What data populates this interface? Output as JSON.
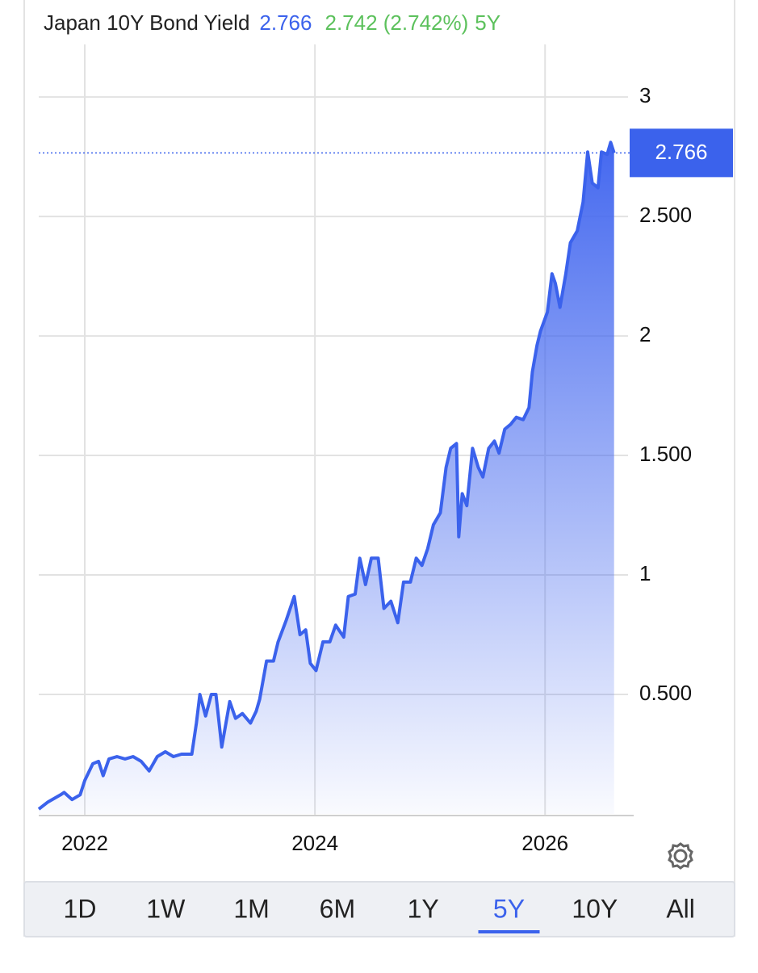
{
  "chart_data": {
    "type": "area",
    "title": "Japan 10Y Bond Yield",
    "last_value": 2.766,
    "change_label": "2.742 (2.742%)",
    "range_label": "5Y",
    "color": "#3b62ec",
    "grid": true,
    "x": [
      2021.6,
      2021.68,
      2021.79,
      2021.82,
      2021.89,
      2021.96,
      2022.0,
      2022.07,
      2022.12,
      2022.16,
      2022.21,
      2022.28,
      2022.35,
      2022.42,
      2022.49,
      2022.56,
      2022.63,
      2022.7,
      2022.77,
      2022.84,
      2022.93,
      2022.97,
      2023.0,
      2023.05,
      2023.1,
      2023.14,
      2023.19,
      2023.26,
      2023.31,
      2023.37,
      2023.44,
      2023.49,
      2023.52,
      2023.58,
      2023.64,
      2023.68,
      2023.75,
      2023.82,
      2023.87,
      2023.92,
      2023.96,
      2024.01,
      2024.07,
      2024.13,
      2024.18,
      2024.25,
      2024.29,
      2024.35,
      2024.39,
      2024.44,
      2024.49,
      2024.55,
      2024.6,
      2024.66,
      2024.72,
      2024.77,
      2024.83,
      2024.88,
      2024.93,
      2024.98,
      2025.03,
      2025.09,
      2025.14,
      2025.18,
      2025.23,
      2025.25,
      2025.28,
      2025.32,
      2025.37,
      2025.42,
      2025.46,
      2025.51,
      2025.56,
      2025.6,
      2025.65,
      2025.7,
      2025.75,
      2025.81,
      2025.86,
      2025.89,
      2025.93,
      2025.96,
      2026.02,
      2026.06,
      2026.09,
      2026.13,
      2026.18,
      2026.22,
      2026.28,
      2026.33,
      2026.37,
      2026.41,
      2026.46,
      2026.49,
      2026.54,
      2026.57,
      2026.6
    ],
    "series": [
      {
        "name": "Japan 10Y Bond Yield",
        "color": "#3b62ec",
        "values": [
          0.02,
          0.05,
          0.08,
          0.09,
          0.06,
          0.08,
          0.14,
          0.21,
          0.22,
          0.16,
          0.23,
          0.24,
          0.23,
          0.24,
          0.22,
          0.18,
          0.24,
          0.26,
          0.24,
          0.25,
          0.25,
          0.38,
          0.5,
          0.41,
          0.5,
          0.5,
          0.28,
          0.47,
          0.4,
          0.42,
          0.38,
          0.43,
          0.48,
          0.64,
          0.64,
          0.72,
          0.81,
          0.91,
          0.75,
          0.77,
          0.63,
          0.6,
          0.72,
          0.72,
          0.79,
          0.74,
          0.91,
          0.92,
          1.07,
          0.96,
          1.07,
          1.07,
          0.86,
          0.89,
          0.8,
          0.97,
          0.97,
          1.07,
          1.04,
          1.11,
          1.21,
          1.26,
          1.45,
          1.53,
          1.55,
          1.16,
          1.34,
          1.29,
          1.53,
          1.45,
          1.41,
          1.53,
          1.56,
          1.51,
          1.61,
          1.63,
          1.66,
          1.65,
          1.7,
          1.85,
          1.96,
          2.02,
          2.1,
          2.26,
          2.22,
          2.12,
          2.26,
          2.39,
          2.44,
          2.56,
          2.77,
          2.64,
          2.62,
          2.77,
          2.76,
          2.81,
          2.766
        ]
      }
    ],
    "xlim": [
      2021.6,
      2026.7
    ],
    "xticks": [
      2022,
      2024,
      2026
    ],
    "ylim": [
      0,
      3.22
    ],
    "yticks": [
      3,
      {
        "value": 2.5,
        "label": "2.500"
      },
      2,
      {
        "value": 1.5,
        "label": "1.500"
      },
      1,
      {
        "value": 0.5,
        "label": "0.500"
      }
    ],
    "range_tabs": [
      "1D",
      "1W",
      "1M",
      "6M",
      "1Y",
      "5Y",
      "10Y",
      "All"
    ]
  }
}
